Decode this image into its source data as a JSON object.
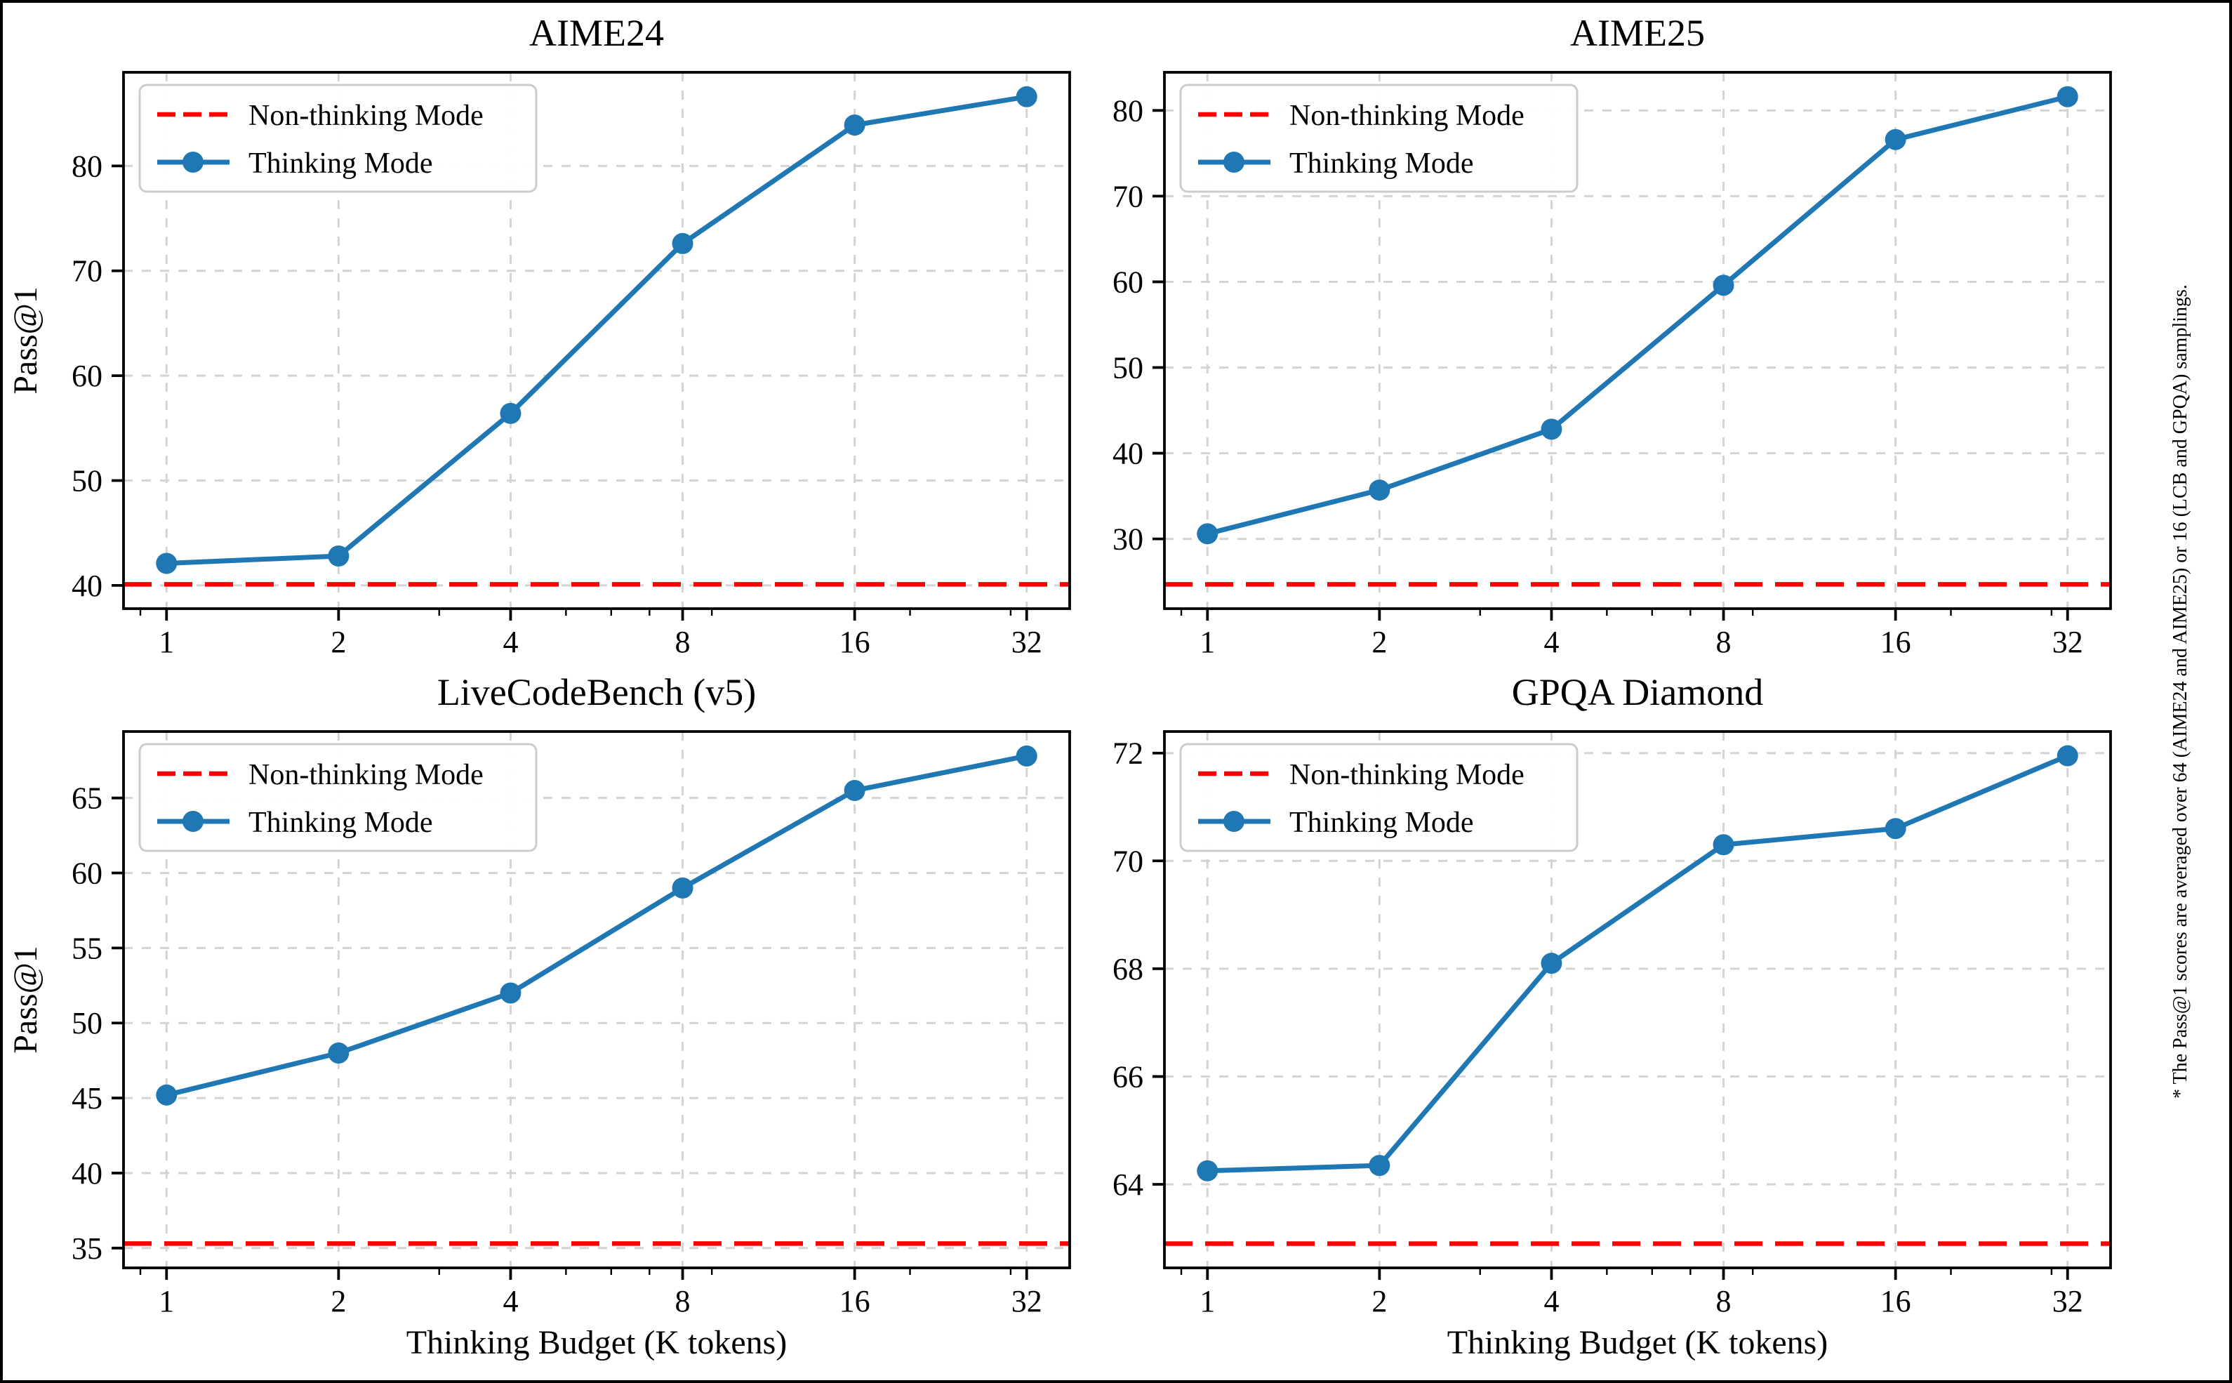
{
  "note": "* The Pass@1 scores are averaged over 64 (AIME24 and AIME25) or 16 (LCB and GPQA) samplings.",
  "labels": {
    "xlabel": "Thinking Budget (K tokens)",
    "ylabel": "Pass@1"
  },
  "legend": {
    "non_thinking": "Non-thinking Mode",
    "thinking": "Thinking Mode"
  },
  "colors": {
    "thinking_line": "#1f77b4",
    "non_thinking_line": "#fe0000",
    "grid": "#d4d4d4",
    "legend_border": "#cccccc",
    "spine": "#000000",
    "background": "#ffffff"
  },
  "chart_data": [
    {
      "type": "line",
      "title": "AIME24",
      "x": [
        1,
        2,
        4,
        8,
        16,
        32
      ],
      "x_scale": "log2",
      "xlabel_shown": false,
      "ylabel_shown": true,
      "yticks": [
        40,
        50,
        60,
        70,
        80
      ],
      "ylim": [
        37.78,
        88.93
      ],
      "grid": true,
      "legend_position": "upper-left",
      "series": [
        {
          "name": "Thinking Mode",
          "style": "line-markers",
          "values": [
            42.1,
            42.8,
            56.4,
            72.6,
            83.9,
            86.6
          ]
        },
        {
          "name": "Non-thinking Mode",
          "style": "dashed-horizontal",
          "value": 40.1
        }
      ]
    },
    {
      "type": "line",
      "title": "AIME25",
      "x": [
        1,
        2,
        4,
        8,
        16,
        32
      ],
      "x_scale": "log2",
      "xlabel_shown": false,
      "ylabel_shown": false,
      "yticks": [
        30,
        40,
        50,
        60,
        70,
        80
      ],
      "ylim": [
        21.86,
        84.45
      ],
      "grid": true,
      "legend_position": "upper-left",
      "series": [
        {
          "name": "Thinking Mode",
          "style": "line-markers",
          "values": [
            30.6,
            35.7,
            42.8,
            59.6,
            76.6,
            81.6
          ]
        },
        {
          "name": "Non-thinking Mode",
          "style": "dashed-horizontal",
          "value": 24.7
        }
      ]
    },
    {
      "type": "line",
      "title": "LiveCodeBench (v5)",
      "x": [
        1,
        2,
        4,
        8,
        16,
        32
      ],
      "x_scale": "log2",
      "xlabel_shown": true,
      "ylabel_shown": true,
      "yticks": [
        35,
        40,
        45,
        50,
        55,
        60,
        65
      ],
      "ylim": [
        33.68,
        69.43
      ],
      "grid": true,
      "legend_position": "upper-left",
      "series": [
        {
          "name": "Thinking Mode",
          "style": "line-markers",
          "values": [
            45.2,
            48.0,
            52.0,
            59.0,
            65.5,
            67.8
          ]
        },
        {
          "name": "Non-thinking Mode",
          "style": "dashed-horizontal",
          "value": 35.3
        }
      ]
    },
    {
      "type": "line",
      "title": "GPQA Diamond",
      "x": [
        1,
        2,
        4,
        8,
        16,
        32
      ],
      "x_scale": "log2",
      "xlabel_shown": true,
      "ylabel_shown": false,
      "yticks": [
        64,
        66,
        68,
        70,
        72
      ],
      "ylim": [
        62.45,
        72.4
      ],
      "grid": true,
      "legend_position": "upper-left",
      "series": [
        {
          "name": "Thinking Mode",
          "style": "line-markers",
          "values": [
            64.25,
            64.35,
            68.1,
            70.3,
            70.6,
            71.95
          ]
        },
        {
          "name": "Non-thinking Mode",
          "style": "dashed-horizontal",
          "value": 62.9
        }
      ]
    }
  ]
}
